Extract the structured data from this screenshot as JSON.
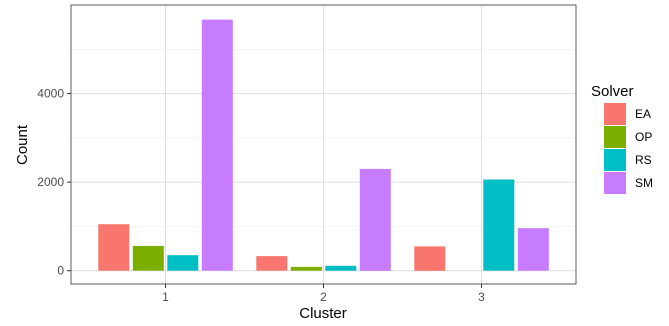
{
  "chart_data": {
    "type": "bar",
    "xlabel": "Cluster",
    "ylabel": "Count",
    "categories": [
      "1",
      "2",
      "3"
    ],
    "ylim": [
      -300,
      6000
    ],
    "yticks": [
      0,
      2000,
      4000
    ],
    "grid": true,
    "legend": {
      "title": "Solver",
      "position": "right"
    },
    "series": [
      {
        "name": "EA",
        "color": "#F8766D",
        "values": [
          1050,
          330,
          550
        ]
      },
      {
        "name": "OP",
        "color": "#7CAE00",
        "values": [
          560,
          85,
          0
        ]
      },
      {
        "name": "RS",
        "color": "#00BFC4",
        "values": [
          350,
          110,
          2060
        ]
      },
      {
        "name": "SM",
        "color": "#C77CFF",
        "values": [
          5670,
          2300,
          960
        ]
      }
    ]
  }
}
